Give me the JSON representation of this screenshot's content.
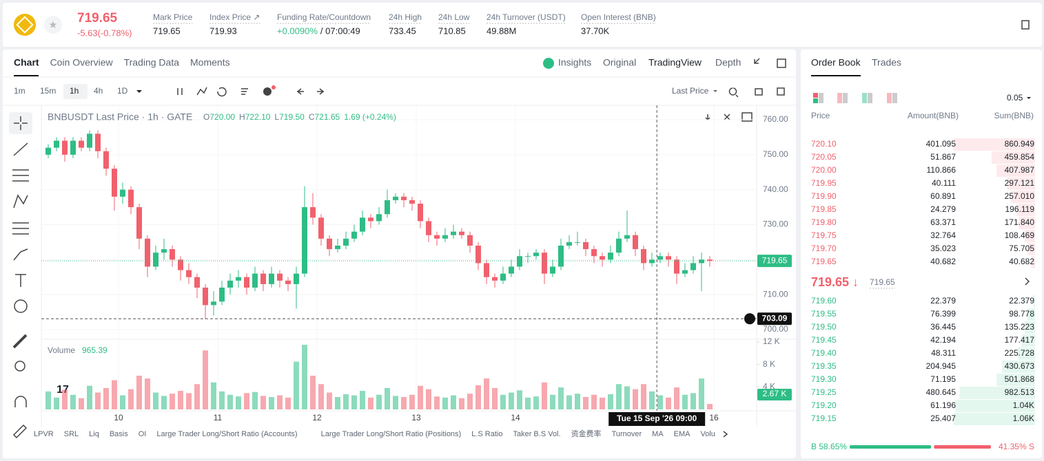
{
  "header": {
    "price": "719.65",
    "change": "-5.63(-0.78%)",
    "stats": [
      {
        "label": "Mark Price",
        "value": "719.65"
      },
      {
        "label": "Index Price ↗",
        "value": "719.93"
      },
      {
        "label": "Funding Rate/Countdown",
        "value": "+0.0090%",
        "extra": "/ 07:00:49"
      },
      {
        "label": "24h High",
        "value": "733.45"
      },
      {
        "label": "24h Low",
        "value": "710.85"
      },
      {
        "label": "24h Turnover (USDT)",
        "value": "49.88M"
      },
      {
        "label": "Open Interest (BNB)",
        "value": "37.70K"
      }
    ]
  },
  "tabs": [
    "Chart",
    "Coin Overview",
    "Trading Data",
    "Moments"
  ],
  "views": [
    "Insights",
    "Original",
    "TradingView",
    "Depth"
  ],
  "intervals": [
    "1m",
    "15m",
    "1h",
    "4h",
    "1D"
  ],
  "price_source": "Last Price",
  "chart_data": {
    "type": "candlestick",
    "title": "BNBUSDT Last Price · 1h · GATE",
    "legend": [
      {
        "label": "O",
        "value": "720.00"
      },
      {
        "label": "H",
        "value": "722.10"
      },
      {
        "label": "L",
        "value": "719.50"
      },
      {
        "label": "C",
        "value": "721.65"
      }
    ],
    "legend_change": "1.69 (+0.24%)",
    "up_color": "#2ebd85",
    "down_color": "#f0616d",
    "candles": [
      [
        750,
        753,
        749,
        752
      ],
      [
        752,
        755,
        751,
        754
      ],
      [
        754,
        755,
        748,
        750
      ],
      [
        750,
        755,
        749,
        754
      ],
      [
        754,
        755,
        751,
        752
      ],
      [
        752,
        757,
        751,
        756
      ],
      [
        756,
        757,
        749,
        751
      ],
      [
        751,
        752,
        744,
        746
      ],
      [
        746,
        747,
        734,
        738
      ],
      [
        738,
        742,
        736,
        740
      ],
      [
        740,
        741,
        733,
        735
      ],
      [
        735,
        736,
        723,
        726
      ],
      [
        726,
        727,
        715,
        718
      ],
      [
        718,
        724,
        717,
        722
      ],
      [
        722,
        726,
        720,
        723
      ],
      [
        723,
        724,
        718,
        720
      ],
      [
        720,
        721,
        714,
        717
      ],
      [
        717,
        719,
        713,
        715
      ],
      [
        715,
        716,
        709,
        712
      ],
      [
        712,
        713,
        703,
        707
      ],
      [
        707,
        711,
        704,
        708
      ],
      [
        708,
        714,
        707,
        712
      ],
      [
        712,
        716,
        710,
        714
      ],
      [
        714,
        717,
        712,
        715
      ],
      [
        715,
        716,
        710,
        712
      ],
      [
        712,
        718,
        711,
        716
      ],
      [
        716,
        717,
        711,
        713
      ],
      [
        713,
        718,
        712,
        716
      ],
      [
        716,
        717,
        712,
        714
      ],
      [
        714,
        715,
        711,
        713
      ],
      [
        713,
        718,
        706,
        716
      ],
      [
        716,
        741,
        715,
        735
      ],
      [
        735,
        739,
        730,
        732
      ],
      [
        732,
        733,
        724,
        726
      ],
      [
        726,
        727,
        721,
        723
      ],
      [
        723,
        726,
        722,
        724
      ],
      [
        724,
        728,
        723,
        726
      ],
      [
        726,
        730,
        725,
        728
      ],
      [
        728,
        734,
        727,
        732
      ],
      [
        732,
        733,
        729,
        731
      ],
      [
        731,
        735,
        730,
        733
      ],
      [
        733,
        740,
        732,
        737
      ],
      [
        737,
        739,
        736,
        738
      ],
      [
        738,
        739,
        735,
        737
      ],
      [
        737,
        738,
        734,
        736
      ],
      [
        736,
        737,
        729,
        731
      ],
      [
        731,
        732,
        725,
        727
      ],
      [
        727,
        728,
        724,
        726
      ],
      [
        726,
        729,
        725,
        727
      ],
      [
        727,
        730,
        726,
        728
      ],
      [
        728,
        729,
        726,
        727
      ],
      [
        727,
        728,
        722,
        724
      ],
      [
        724,
        725,
        717,
        719
      ],
      [
        719,
        720,
        713,
        715
      ],
      [
        715,
        716,
        712,
        714
      ],
      [
        714,
        718,
        713,
        716
      ],
      [
        716,
        720,
        715,
        718
      ],
      [
        718,
        723,
        717,
        721
      ],
      [
        721,
        722,
        719,
        721
      ],
      [
        721,
        723,
        720,
        722
      ],
      [
        722,
        723,
        713,
        716
      ],
      [
        716,
        720,
        715,
        718
      ],
      [
        718,
        726,
        717,
        724
      ],
      [
        724,
        727,
        723,
        725
      ],
      [
        725,
        728,
        724,
        725
      ],
      [
        725,
        726,
        721,
        723
      ],
      [
        723,
        724,
        719,
        721
      ],
      [
        721,
        722,
        718,
        720
      ],
      [
        720,
        724,
        719,
        722
      ],
      [
        722,
        728,
        721,
        726
      ],
      [
        726,
        734,
        725,
        727
      ],
      [
        727,
        728,
        721,
        723
      ],
      [
        723,
        724,
        717,
        719
      ],
      [
        719,
        722,
        718,
        720
      ],
      [
        720,
        722,
        719,
        721
      ],
      [
        721,
        722,
        718,
        720
      ],
      [
        720,
        721,
        713,
        716
      ],
      [
        716,
        719,
        715,
        717
      ],
      [
        717,
        721,
        716,
        719
      ],
      [
        719,
        722,
        711,
        720
      ],
      [
        720,
        721,
        718,
        719.65
      ]
    ],
    "volume": [
      3200,
      2100,
      3500,
      2600,
      2000,
      4200,
      3000,
      3800,
      5200,
      2500,
      3600,
      6000,
      5500,
      3000,
      2400,
      2800,
      3300,
      2900,
      4500,
      10500,
      4800,
      3200,
      2600,
      2300,
      2900,
      3100,
      2400,
      2200,
      2500,
      2100,
      8500,
      11500,
      6000,
      4500,
      3000,
      2200,
      2700,
      2500,
      3300,
      2100,
      2600,
      3800,
      2400,
      2200,
      2600,
      4200,
      3600,
      2300,
      2100,
      2500,
      2000,
      2800,
      4300,
      5500,
      3800,
      2600,
      3000,
      3400,
      2100,
      2300,
      4800,
      2600,
      3900,
      2500,
      2800,
      2200,
      2600,
      2100,
      2700,
      4500,
      4100,
      3600,
      4500,
      3200,
      2500,
      2100,
      3900,
      2600,
      2900,
      5500,
      965.39
    ],
    "volume_label": "Volume",
    "volume_value": "965.39",
    "ylim": [
      700,
      760
    ],
    "yticks": [
      {
        "value": 700,
        "label": "700.00"
      },
      {
        "value": 710,
        "label": "710.00"
      },
      {
        "value": 720,
        "label": "720.00"
      },
      {
        "value": 730,
        "label": "730.00"
      },
      {
        "value": 740,
        "label": "740.00"
      },
      {
        "value": 750,
        "label": "750.00"
      },
      {
        "value": 760,
        "label": "760.00"
      }
    ],
    "vlim": [
      0,
      12000
    ],
    "vticks": [
      {
        "value": 4000,
        "label": "4 K"
      },
      {
        "value": 8000,
        "label": "8 K"
      },
      {
        "value": 12000,
        "label": "12 K"
      }
    ],
    "xticks": [
      {
        "value": 9,
        "label": "10"
      },
      {
        "value": 21,
        "label": "11"
      },
      {
        "value": 33,
        "label": "12"
      },
      {
        "value": 45,
        "label": "13"
      },
      {
        "value": 57,
        "label": "14"
      },
      {
        "value": 81,
        "label": "16"
      }
    ],
    "last_price": {
      "value": 719.65,
      "label": "719.65"
    },
    "crosshair": {
      "value": 703.09,
      "label": "703.09",
      "x": 73.6,
      "time": "Tue 15 Sep '26  09:00"
    },
    "volume_tag": "2.67 K"
  },
  "indicators": [
    "LPVR",
    "SRL",
    "Liq",
    "Basis",
    "OI",
    "Large Trader Long/Short Ratio (Accounts)",
    "Large Trader Long/Short Ratio (Positions)",
    "L.S Ratio",
    "Taker B.S Vol.",
    "资金费率",
    "Turnover",
    "MA",
    "EMA",
    "Volu"
  ],
  "order_book": {
    "tabs": [
      "Order Book",
      "Trades"
    ],
    "step": "0.05",
    "columns": [
      "Price",
      "Amount(BNB)",
      "Sum(BNB)"
    ],
    "asks": [
      {
        "price": "720.10",
        "amount": "401.095",
        "sum": 860.949
      },
      {
        "price": "720.05",
        "amount": "51.867",
        "sum": 459.854
      },
      {
        "price": "720.00",
        "amount": "110.866",
        "sum": 407.987
      },
      {
        "price": "719.95",
        "amount": "40.111",
        "sum": 297.121
      },
      {
        "price": "719.90",
        "amount": "60.891",
        "sum": 257.01,
        "sum_label": "257.010"
      },
      {
        "price": "719.85",
        "amount": "24.279",
        "sum": 196.119
      },
      {
        "price": "719.80",
        "amount": "63.371",
        "sum": 171.84,
        "sum_label": "171.840"
      },
      {
        "price": "719.75",
        "amount": "32.764",
        "sum": 108.469
      },
      {
        "price": "719.70",
        "amount": "35.023",
        "sum": 75.705
      },
      {
        "price": "719.65",
        "amount": "40.682",
        "sum": 40.682
      }
    ],
    "mid": "719.65 ↓",
    "mark": "719.65",
    "bids": [
      {
        "price": "719.60",
        "amount": "22.379",
        "sum": 22.379
      },
      {
        "price": "719.55",
        "amount": "76.399",
        "sum": 98.778
      },
      {
        "price": "719.50",
        "amount": "36.445",
        "sum": 135.223
      },
      {
        "price": "719.45",
        "amount": "42.194",
        "sum": 177.417
      },
      {
        "price": "719.40",
        "amount": "48.311",
        "sum": 225.728
      },
      {
        "price": "719.35",
        "amount": "204.945",
        "sum": 430.673
      },
      {
        "price": "719.30",
        "amount": "71.195",
        "sum": 501.868
      },
      {
        "price": "719.25",
        "amount": "480.645",
        "sum": 982.513
      },
      {
        "price": "719.20",
        "amount": "61.196",
        "sum": 1040,
        "sum_label": "1.04K"
      },
      {
        "price": "719.15",
        "amount": "25.407",
        "sum": 1060,
        "sum_label": "1.06K"
      }
    ],
    "buy_ratio": {
      "value": 58.65,
      "label": "B 58.65%"
    },
    "sell_ratio": {
      "value": 41.35,
      "label": "41.35% S"
    }
  }
}
